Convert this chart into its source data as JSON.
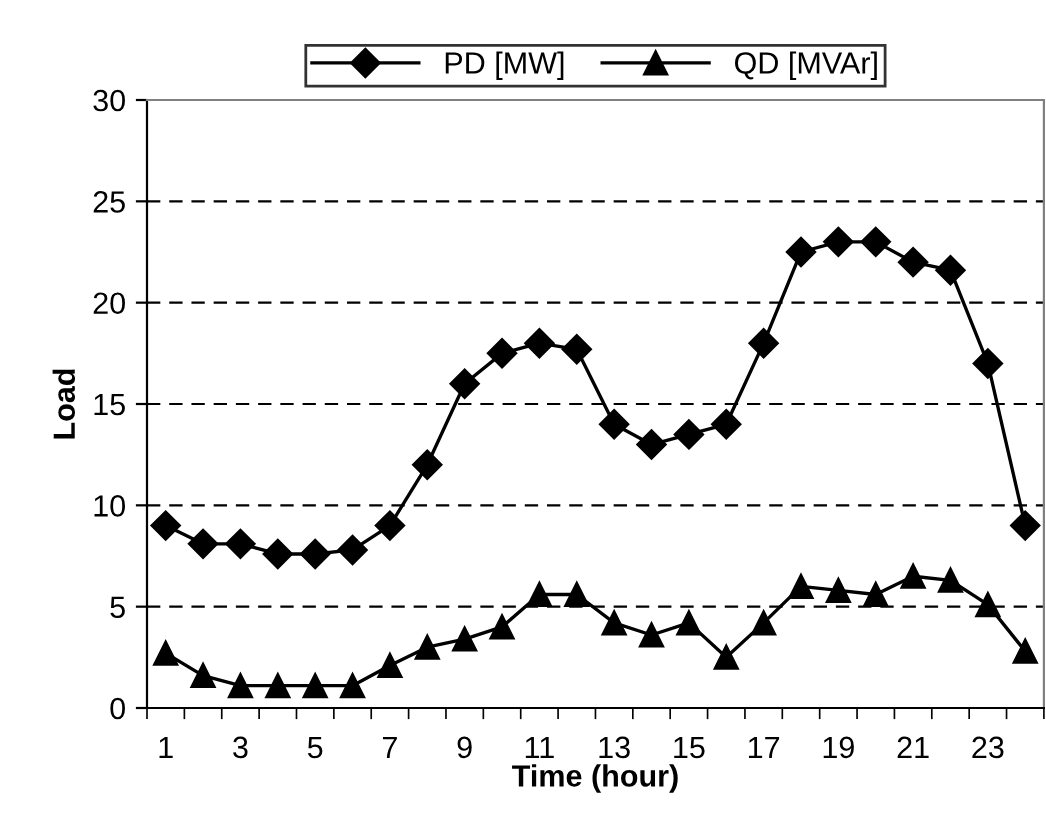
{
  "chart_data": {
    "type": "line",
    "xlabel": "Time (hour)",
    "ylabel": "Load",
    "categories": [
      "1",
      null,
      "3",
      null,
      "5",
      null,
      "7",
      null,
      "9",
      null,
      "11",
      null,
      "13",
      null,
      "15",
      null,
      "17",
      null,
      "19",
      null,
      "21",
      null,
      "23",
      null
    ],
    "series": [
      {
        "name": "PD [MW]",
        "color": "#000000",
        "marker": "diamond",
        "values": [
          9,
          8.1,
          8.1,
          7.6,
          7.6,
          7.8,
          9,
          12,
          16,
          17.5,
          18,
          17.7,
          14,
          13,
          13.5,
          14,
          18,
          22.5,
          23,
          23,
          22,
          21.6,
          17,
          9
        ]
      },
      {
        "name": "QD [MVAr]",
        "color": "#000000",
        "marker": "triangle",
        "values": [
          2.7,
          1.6,
          1.1,
          1.1,
          1.1,
          1.1,
          2.1,
          3,
          3.4,
          4,
          5.6,
          5.6,
          4.2,
          3.6,
          4.2,
          2.5,
          4.2,
          6,
          5.8,
          5.6,
          6.5,
          6.3,
          5.1,
          2.8
        ]
      }
    ],
    "ylim": [
      0,
      30
    ],
    "yticks": [
      0,
      5,
      10,
      15,
      20,
      25,
      30
    ],
    "grid": "y",
    "line_style": "solid",
    "legend": "top"
  }
}
